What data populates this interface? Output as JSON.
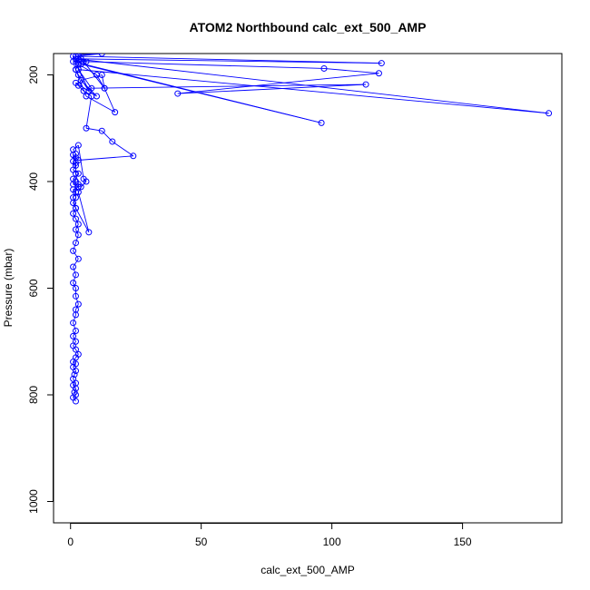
{
  "chart_data": {
    "type": "line",
    "title": "ATOM2 Northbound calc_ext_500_AMP",
    "xlabel": "calc_ext_500_AMP",
    "ylabel": "Pressure (mbar)",
    "xlim": [
      -6.5,
      188
    ],
    "ylim": [
      1040,
      160
    ],
    "y_reversed": true,
    "xticks": [
      0,
      50,
      100,
      150
    ],
    "yticks": [
      200,
      400,
      600,
      800,
      1000
    ],
    "grid": false,
    "marker": "open-circle",
    "line_color": "#0000ff",
    "series": [
      {
        "x": [
          2,
          1,
          2,
          1.5,
          2,
          1,
          2,
          1,
          1.5,
          2,
          1,
          2,
          1,
          2,
          3,
          2,
          1,
          2,
          1,
          2,
          1,
          2,
          2,
          3,
          2,
          2,
          1,
          2,
          1,
          3,
          1,
          2,
          3,
          2,
          3,
          2,
          1,
          2,
          1,
          2,
          2,
          1,
          3,
          1,
          2,
          1,
          3,
          1,
          2,
          1,
          2,
          2,
          1,
          3,
          5,
          6,
          4,
          3,
          7,
          2,
          1,
          3,
          2,
          2,
          1,
          3,
          24,
          16,
          12,
          6,
          8,
          5,
          3,
          2,
          10,
          4,
          12,
          13,
          17,
          6,
          2,
          3,
          2,
          1,
          7,
          3,
          2,
          1,
          96,
          4,
          2,
          183,
          3,
          8,
          113,
          41,
          118,
          97,
          5,
          13,
          10,
          3,
          2,
          6,
          3,
          4,
          119,
          2,
          12,
          3
        ],
        "y": [
          812,
          805,
          800,
          795,
          788,
          782,
          778,
          770,
          762,
          755,
          748,
          742,
          738,
          730,
          724,
          715,
          708,
          700,
          690,
          680,
          665,
          650,
          640,
          630,
          615,
          600,
          590,
          575,
          560,
          545,
          530,
          515,
          500,
          490,
          480,
          470,
          460,
          450,
          440,
          430,
          420,
          415,
          410,
          405,
          400,
          395,
          385,
          378,
          370,
          362,
          355,
          348,
          340,
          332,
          395,
          400,
          410,
          420,
          495,
          450,
          430,
          405,
          385,
          365,
          350,
          360,
          352,
          325,
          305,
          300,
          240,
          230,
          220,
          215,
          240,
          210,
          200,
          225,
          270,
          240,
          190,
          180,
          170,
          165,
          230,
          200,
          190,
          175,
          290,
          180,
          170,
          272,
          190,
          225,
          218,
          235,
          197,
          188,
          175,
          225,
          200,
          180,
          170,
          175,
          165,
          170,
          178,
          165,
          160,
          162
        ]
      }
    ]
  }
}
